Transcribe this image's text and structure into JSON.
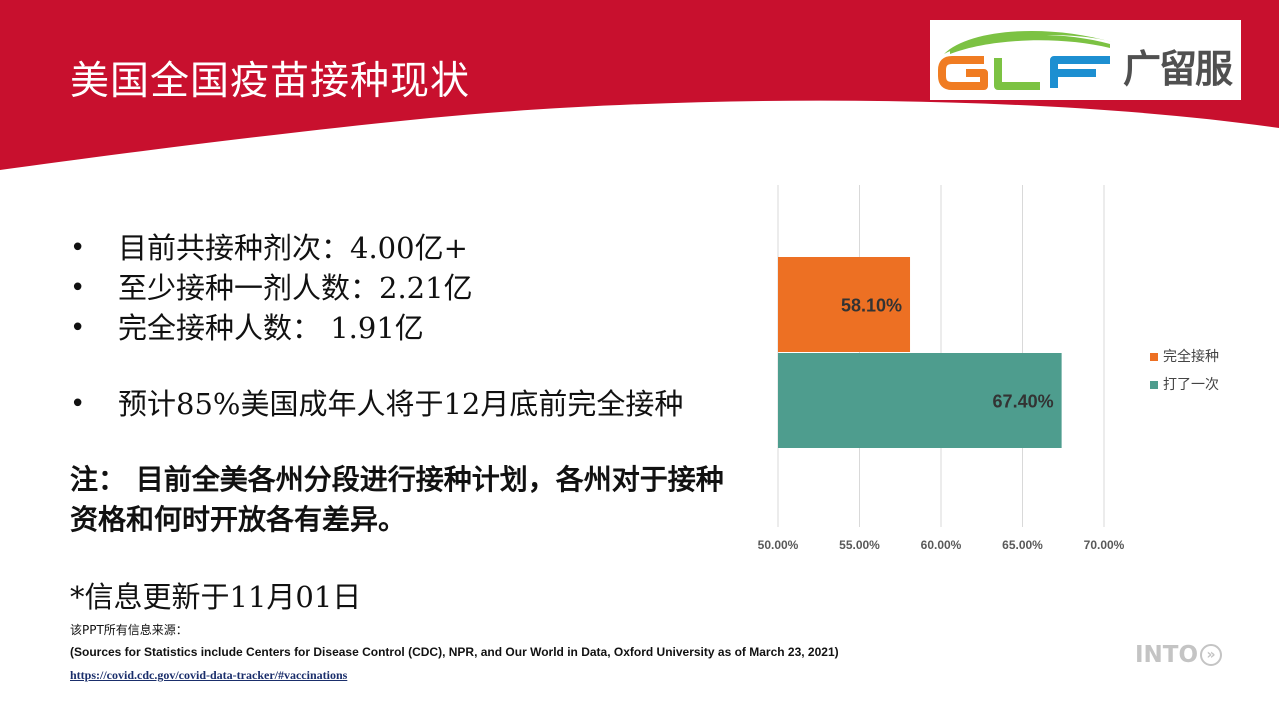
{
  "title": "美国全国疫苗接种现状",
  "logo": {
    "brand_letters": "GLF",
    "brand_text": "广留服"
  },
  "bullets": [
    {
      "dot": "•",
      "text": "目前共接种剂次：4.00亿+"
    },
    {
      "dot": "•",
      "text": "至少接种一剂人数：2.21亿"
    },
    {
      "dot": "•",
      "text": "完全接种人数： 1.91亿"
    },
    {
      "dot": "•",
      "text": "预计85%美国成年人将于12月底前完全接种"
    }
  ],
  "note": "注： 目前全美各州分段进行接种计划，各州对于接种资格和何时开放各有差异。",
  "update": "*信息更新于11月01日",
  "sources": {
    "label": "该PPT所有信息来源：",
    "citation": "(Sources for Statistics include Centers for Disease Control (CDC), NPR, and Our World in Data, Oxford University as of March 23, 2021)",
    "url": "https://covid.cdc.gov/covid-data-tracker/#vaccinations"
  },
  "footer_logo": {
    "text": "INTO",
    "chevron": "»"
  },
  "colors": {
    "header_red": "#c8102e",
    "bar_full": "#ed7023",
    "bar_one": "#4e9d8e",
    "logo_orange": "#f07c22",
    "logo_green": "#7cc243",
    "logo_blue": "#1d8fd1"
  },
  "chart_data": {
    "type": "bar",
    "orientation": "horizontal",
    "categories": [
      "完全接种",
      "打了一次"
    ],
    "series": [
      {
        "name": "完全接种",
        "value": 0.581,
        "label": "58.10%",
        "color": "#ed7023"
      },
      {
        "name": "打了一次",
        "value": 0.674,
        "label": "67.40%",
        "color": "#4e9d8e"
      }
    ],
    "xlim": [
      0.5,
      0.7
    ],
    "xticks": [
      0.5,
      0.55,
      0.6,
      0.65,
      0.7
    ],
    "xtick_labels": [
      "50.00%",
      "55.00%",
      "60.00%",
      "65.00%",
      "70.00%"
    ],
    "grid": true,
    "legend": "right"
  }
}
